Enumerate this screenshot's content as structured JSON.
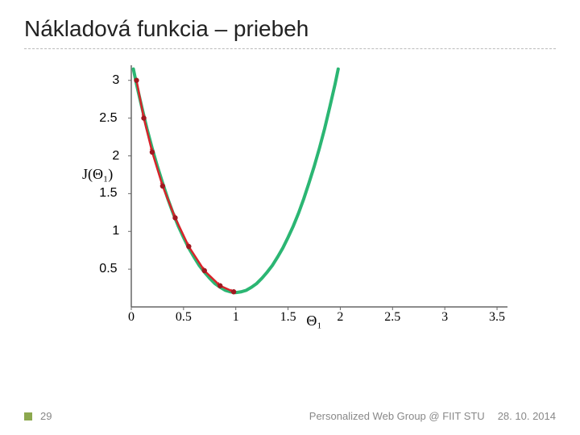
{
  "title": "Nákladová funkcia – priebeh",
  "chart": {
    "type": "line",
    "xlim": [
      -0.1,
      3.6
    ],
    "ylim": [
      0,
      3.2
    ],
    "x_ticks": [
      0,
      0.5,
      1,
      1.5,
      2,
      2.5,
      3,
      3.5
    ],
    "x_tick_labels": [
      "0",
      "0.5",
      "1",
      "1.5",
      "2",
      "2.5",
      "3",
      "3.5"
    ],
    "y_ticks": [
      0.5,
      1,
      1.5,
      2,
      2.5,
      3
    ],
    "y_tick_labels": [
      "0.5",
      "1",
      "1.5",
      "2",
      "2.5",
      "3"
    ],
    "ylabel": "J(Θ₁)",
    "xlabel": "Θ₁",
    "background_color": "#ffffff",
    "axis_color": "#666666",
    "curve": {
      "color": "#2bb673",
      "width": 4,
      "points": [
        [
          0.02,
          3.15
        ],
        [
          0.05,
          2.95
        ],
        [
          0.1,
          2.65
        ],
        [
          0.15,
          2.36
        ],
        [
          0.2,
          2.1
        ],
        [
          0.25,
          1.86
        ],
        [
          0.3,
          1.64
        ],
        [
          0.35,
          1.43
        ],
        [
          0.4,
          1.24
        ],
        [
          0.45,
          1.07
        ],
        [
          0.5,
          0.92
        ],
        [
          0.55,
          0.78
        ],
        [
          0.6,
          0.66
        ],
        [
          0.65,
          0.55
        ],
        [
          0.7,
          0.46
        ],
        [
          0.75,
          0.38
        ],
        [
          0.8,
          0.31
        ],
        [
          0.85,
          0.26
        ],
        [
          0.9,
          0.22
        ],
        [
          0.95,
          0.2
        ],
        [
          1.0,
          0.19
        ],
        [
          1.05,
          0.2
        ],
        [
          1.1,
          0.22
        ],
        [
          1.15,
          0.26
        ],
        [
          1.2,
          0.31
        ],
        [
          1.25,
          0.38
        ],
        [
          1.3,
          0.46
        ],
        [
          1.35,
          0.55
        ],
        [
          1.4,
          0.66
        ],
        [
          1.45,
          0.78
        ],
        [
          1.5,
          0.92
        ],
        [
          1.55,
          1.07
        ],
        [
          1.6,
          1.24
        ],
        [
          1.65,
          1.43
        ],
        [
          1.7,
          1.64
        ],
        [
          1.75,
          1.86
        ],
        [
          1.8,
          2.1
        ],
        [
          1.85,
          2.36
        ],
        [
          1.9,
          2.65
        ],
        [
          1.95,
          2.95
        ],
        [
          1.98,
          3.15
        ]
      ]
    },
    "descent_line": {
      "color": "#d8232a",
      "width": 2.5,
      "points": [
        [
          0.05,
          3.0
        ],
        [
          0.12,
          2.5
        ],
        [
          0.2,
          2.05
        ],
        [
          0.3,
          1.6
        ],
        [
          0.42,
          1.18
        ],
        [
          0.55,
          0.8
        ],
        [
          0.7,
          0.48
        ],
        [
          0.85,
          0.28
        ],
        [
          0.98,
          0.2
        ]
      ]
    },
    "descent_markers": {
      "color": "#a01820",
      "size": 3.2,
      "points": [
        [
          0.05,
          3.0
        ],
        [
          0.12,
          2.5
        ],
        [
          0.2,
          2.05
        ],
        [
          0.3,
          1.6
        ],
        [
          0.42,
          1.18
        ],
        [
          0.55,
          0.8
        ],
        [
          0.7,
          0.48
        ],
        [
          0.85,
          0.28
        ],
        [
          0.98,
          0.2
        ]
      ]
    },
    "arrowheads": {
      "color": "#d8232a",
      "size": 5,
      "segments": [
        [
          [
            0.05,
            3.0
          ],
          [
            0.12,
            2.5
          ]
        ],
        [
          [
            0.12,
            2.5
          ],
          [
            0.2,
            2.05
          ]
        ],
        [
          [
            0.2,
            2.05
          ],
          [
            0.3,
            1.6
          ]
        ],
        [
          [
            0.3,
            1.6
          ],
          [
            0.42,
            1.18
          ]
        ],
        [
          [
            0.42,
            1.18
          ],
          [
            0.55,
            0.8
          ]
        ],
        [
          [
            0.55,
            0.8
          ],
          [
            0.7,
            0.48
          ]
        ],
        [
          [
            0.7,
            0.48
          ],
          [
            0.85,
            0.28
          ]
        ],
        [
          [
            0.85,
            0.28
          ],
          [
            0.98,
            0.2
          ]
        ]
      ]
    }
  },
  "footer": {
    "page_number": "29",
    "group": "Personalized Web Group @ FIIT STU",
    "date": "28. 10. 2014",
    "bullet_color": "#8ca84e"
  }
}
